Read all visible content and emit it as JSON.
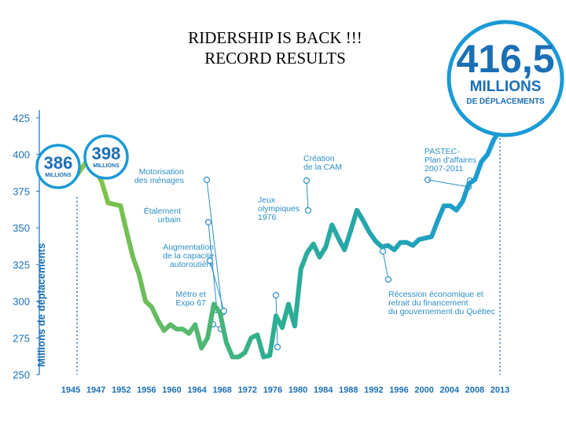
{
  "slide": {
    "title_line1": "RIDERSHIP IS BACK !!!",
    "title_line2": "RECORD RESULTS"
  },
  "chart_data": {
    "type": "line",
    "ylabel": "Millions de déplacements",
    "ylim": [
      250,
      425
    ],
    "yticks": [
      250,
      275,
      300,
      325,
      350,
      375,
      400,
      425
    ],
    "xtick_labels": [
      "1945",
      "1947",
      "1952",
      "1956",
      "1960",
      "1964",
      "1968",
      "1972",
      "1976",
      "1980",
      "1984",
      "1988",
      "1992",
      "1996",
      "2000",
      "2004",
      "2008",
      "2013"
    ],
    "x_range": [
      1944,
      2013
    ],
    "colors": {
      "start": "#8dc63f",
      "mid": "#2eaf8f",
      "end": "#1a9ad6",
      "text": "#1a6fb5",
      "annotation": "#2c8fc7"
    },
    "points": [
      [
        1945,
        386
      ],
      [
        1946,
        392
      ],
      [
        1947,
        398
      ],
      [
        1949,
        381
      ],
      [
        1950,
        367
      ],
      [
        1951,
        366
      ],
      [
        1952,
        365
      ],
      [
        1953,
        347
      ],
      [
        1954,
        330
      ],
      [
        1955,
        318
      ],
      [
        1956,
        300
      ],
      [
        1957,
        296
      ],
      [
        1958,
        287
      ],
      [
        1959,
        280
      ],
      [
        1960,
        284
      ],
      [
        1961,
        281
      ],
      [
        1962,
        281
      ],
      [
        1963,
        278
      ],
      [
        1964,
        284
      ],
      [
        1965,
        268
      ],
      [
        1966,
        275
      ],
      [
        1967,
        298
      ],
      [
        1968,
        292
      ],
      [
        1969,
        272
      ],
      [
        1970,
        262
      ],
      [
        1971,
        262
      ],
      [
        1972,
        265
      ],
      [
        1973,
        275
      ],
      [
        1974,
        277
      ],
      [
        1975,
        262
      ],
      [
        1976,
        263
      ],
      [
        1977,
        290
      ],
      [
        1978,
        282
      ],
      [
        1979,
        298
      ],
      [
        1980,
        283
      ],
      [
        1981,
        322
      ],
      [
        1982,
        333
      ],
      [
        1983,
        339
      ],
      [
        1984,
        330
      ],
      [
        1985,
        337
      ],
      [
        1986,
        352
      ],
      [
        1987,
        343
      ],
      [
        1988,
        335
      ],
      [
        1989,
        348
      ],
      [
        1990,
        362
      ],
      [
        1991,
        355
      ],
      [
        1992,
        347
      ],
      [
        1993,
        341
      ],
      [
        1994,
        337
      ],
      [
        1995,
        338
      ],
      [
        1996,
        335
      ],
      [
        1997,
        340
      ],
      [
        1998,
        340
      ],
      [
        1999,
        338
      ],
      [
        2000,
        342
      ],
      [
        2001,
        343
      ],
      [
        2002,
        344
      ],
      [
        2003,
        355
      ],
      [
        2004,
        365
      ],
      [
        2005,
        365
      ],
      [
        2006,
        362
      ],
      [
        2007,
        368
      ],
      [
        2008,
        380
      ],
      [
        2009,
        383
      ],
      [
        2010,
        395
      ],
      [
        2011,
        400
      ],
      [
        2012,
        410
      ],
      [
        2013,
        416.5
      ]
    ],
    "callouts": [
      {
        "value": "386",
        "unit": "MILLIONS",
        "x": 1945,
        "y": 386
      },
      {
        "value": "398",
        "unit": "MILLIONS",
        "x": 1947,
        "y": 398
      },
      {
        "value": "416,5",
        "unit": "MILLIONS",
        "sub": "DE DÉPLACEMENTS",
        "x": 2013,
        "y": 416.5
      }
    ],
    "annotations": [
      {
        "lines": [
          "Motorisation",
          "des ménages"
        ],
        "x": 1966,
        "y": 282,
        "align": "end"
      },
      {
        "lines": [
          "Étalement",
          "urbain"
        ],
        "x": 1965,
        "y": 275,
        "align": "end"
      },
      {
        "lines": [
          "Augmentation",
          "de la capacité",
          "autoroutière"
        ],
        "x": 1963,
        "y": 281,
        "align": "end"
      },
      {
        "lines": [
          "Métro et",
          "Expo 67"
        ],
        "x": 1965,
        "y": 280,
        "align": "end"
      },
      {
        "lines": [
          "Jeux",
          "olympiques",
          "1976"
        ],
        "x": 1977,
        "y": 300,
        "align": "start"
      },
      {
        "lines": [
          "Création",
          "de la CAM"
        ],
        "x": 1983,
        "y": 361,
        "align": "start"
      },
      {
        "lines": [
          "PASTEC-",
          "Plan d'affaires",
          "2007-2011"
        ],
        "x": 2007,
        "y": 380,
        "align": "start"
      },
      {
        "lines": [
          "Récession économique et",
          "retrait du financement",
          "du gouvernement du Québec"
        ],
        "x": 1994,
        "y": 337,
        "align": "start"
      }
    ]
  }
}
